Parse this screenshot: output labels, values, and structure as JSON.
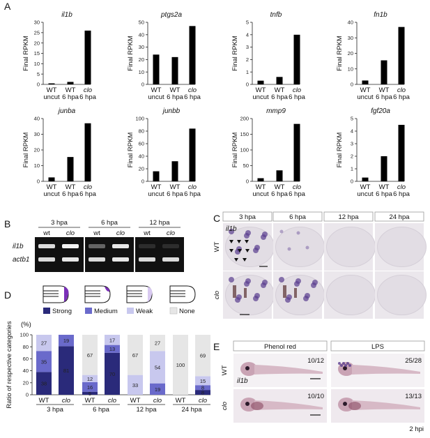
{
  "panelA": {
    "letter": "A",
    "ylabel": "Final RPKM",
    "categories": [
      [
        "WT",
        "uncut"
      ],
      [
        "WT",
        "6 hpa"
      ],
      [
        "clo",
        "6 hpa"
      ]
    ],
    "charts": [
      {
        "gene": "il1b",
        "ymax": 30,
        "ticks": [
          0,
          5,
          10,
          15,
          20,
          25,
          30
        ],
        "values": [
          0.5,
          1.2,
          26
        ]
      },
      {
        "gene": "ptgs2a",
        "ymax": 50,
        "ticks": [
          0,
          10,
          20,
          30,
          40,
          50
        ],
        "values": [
          24,
          22,
          47
        ]
      },
      {
        "gene": "tnfb",
        "ymax": 5,
        "ticks": [
          0,
          1,
          2,
          3,
          4,
          5
        ],
        "values": [
          0.3,
          0.6,
          4
        ]
      },
      {
        "gene": "fn1b",
        "ymax": 40,
        "ticks": [
          0,
          10,
          20,
          30,
          40
        ],
        "values": [
          2.5,
          15.5,
          37
        ]
      },
      {
        "gene": "junba",
        "ymax": 40,
        "ticks": [
          0,
          10,
          20,
          30,
          40
        ],
        "values": [
          2.5,
          15.5,
          37
        ]
      },
      {
        "gene": "junbb",
        "ymax": 100,
        "ticks": [
          0,
          20,
          40,
          60,
          80,
          100
        ],
        "values": [
          16,
          32,
          84
        ]
      },
      {
        "gene": "mmp9",
        "ymax": 200,
        "ticks": [
          0,
          50,
          100,
          150,
          200
        ],
        "values": [
          10,
          35,
          183
        ]
      },
      {
        "gene": "fgf20a",
        "ymax": 5,
        "ticks": [
          0,
          1,
          2,
          3,
          4,
          5
        ],
        "values": [
          0.3,
          2,
          4.5
        ]
      }
    ]
  },
  "panelB": {
    "letter": "B",
    "timepoints": [
      "3 hpa",
      "6 hpa",
      "12 hpa"
    ],
    "lanes": [
      "wt",
      "clo"
    ],
    "rows": [
      "il1b",
      "actb1"
    ]
  },
  "panelC": {
    "letter": "C",
    "timepoints": [
      "3 hpa",
      "6 hpa",
      "12 hpa",
      "24 hpa"
    ],
    "rows": [
      "WT",
      "clo"
    ],
    "stain": "il1b"
  },
  "panelD": {
    "letter": "D",
    "yunit": "(%)",
    "ylabel": "Ratio of  respective categories",
    "legend": [
      "Strong",
      "Medium",
      "Weak",
      "None"
    ],
    "colors": {
      "Strong": "#2a2a7a",
      "Medium": "#6a6acb",
      "Weak": "#c8c8ee",
      "None": "#e6e6e6"
    },
    "groups": [
      "3 hpa",
      "6 hpa",
      "12 hpa",
      "24 hpa"
    ],
    "bars": [
      {
        "label": "WT",
        "group": 0,
        "values": [
          38,
          35,
          27,
          0
        ],
        "labels": [
          "38",
          "35",
          "27",
          ""
        ]
      },
      {
        "label": "clo",
        "group": 0,
        "values": [
          81,
          19,
          0,
          0
        ],
        "labels": [
          "81",
          "19",
          "",
          ""
        ]
      },
      {
        "label": "WT",
        "group": 1,
        "values": [
          5,
          16,
          12,
          67
        ],
        "labels": [
          "5",
          "16",
          "12",
          "67"
        ]
      },
      {
        "label": "clo",
        "group": 1,
        "values": [
          70,
          13,
          17,
          0
        ],
        "labels": [
          "70",
          "13",
          "17",
          ""
        ]
      },
      {
        "label": "WT",
        "group": 2,
        "values": [
          0,
          0,
          33,
          67
        ],
        "labels": [
          "",
          "",
          "33",
          "67"
        ]
      },
      {
        "label": "clo",
        "group": 2,
        "values": [
          0,
          19,
          54,
          27
        ],
        "labels": [
          "",
          "19",
          "54",
          "27"
        ]
      },
      {
        "label": "WT",
        "group": 3,
        "values": [
          0,
          0,
          0,
          100
        ],
        "labels": [
          "",
          "",
          "",
          "100"
        ]
      },
      {
        "label": "clo",
        "group": 3,
        "values": [
          8,
          8,
          15,
          69
        ],
        "labels": [
          "8",
          "8",
          "15",
          "69"
        ]
      }
    ]
  },
  "panelE": {
    "letter": "E",
    "columns": [
      "Phenol red",
      "LPS"
    ],
    "rows": [
      "WT",
      "clo"
    ],
    "stain": "il1b",
    "counts": [
      [
        "10/12",
        "25/28"
      ],
      [
        "10/10",
        "13/13"
      ]
    ],
    "time": "2 hpi"
  }
}
